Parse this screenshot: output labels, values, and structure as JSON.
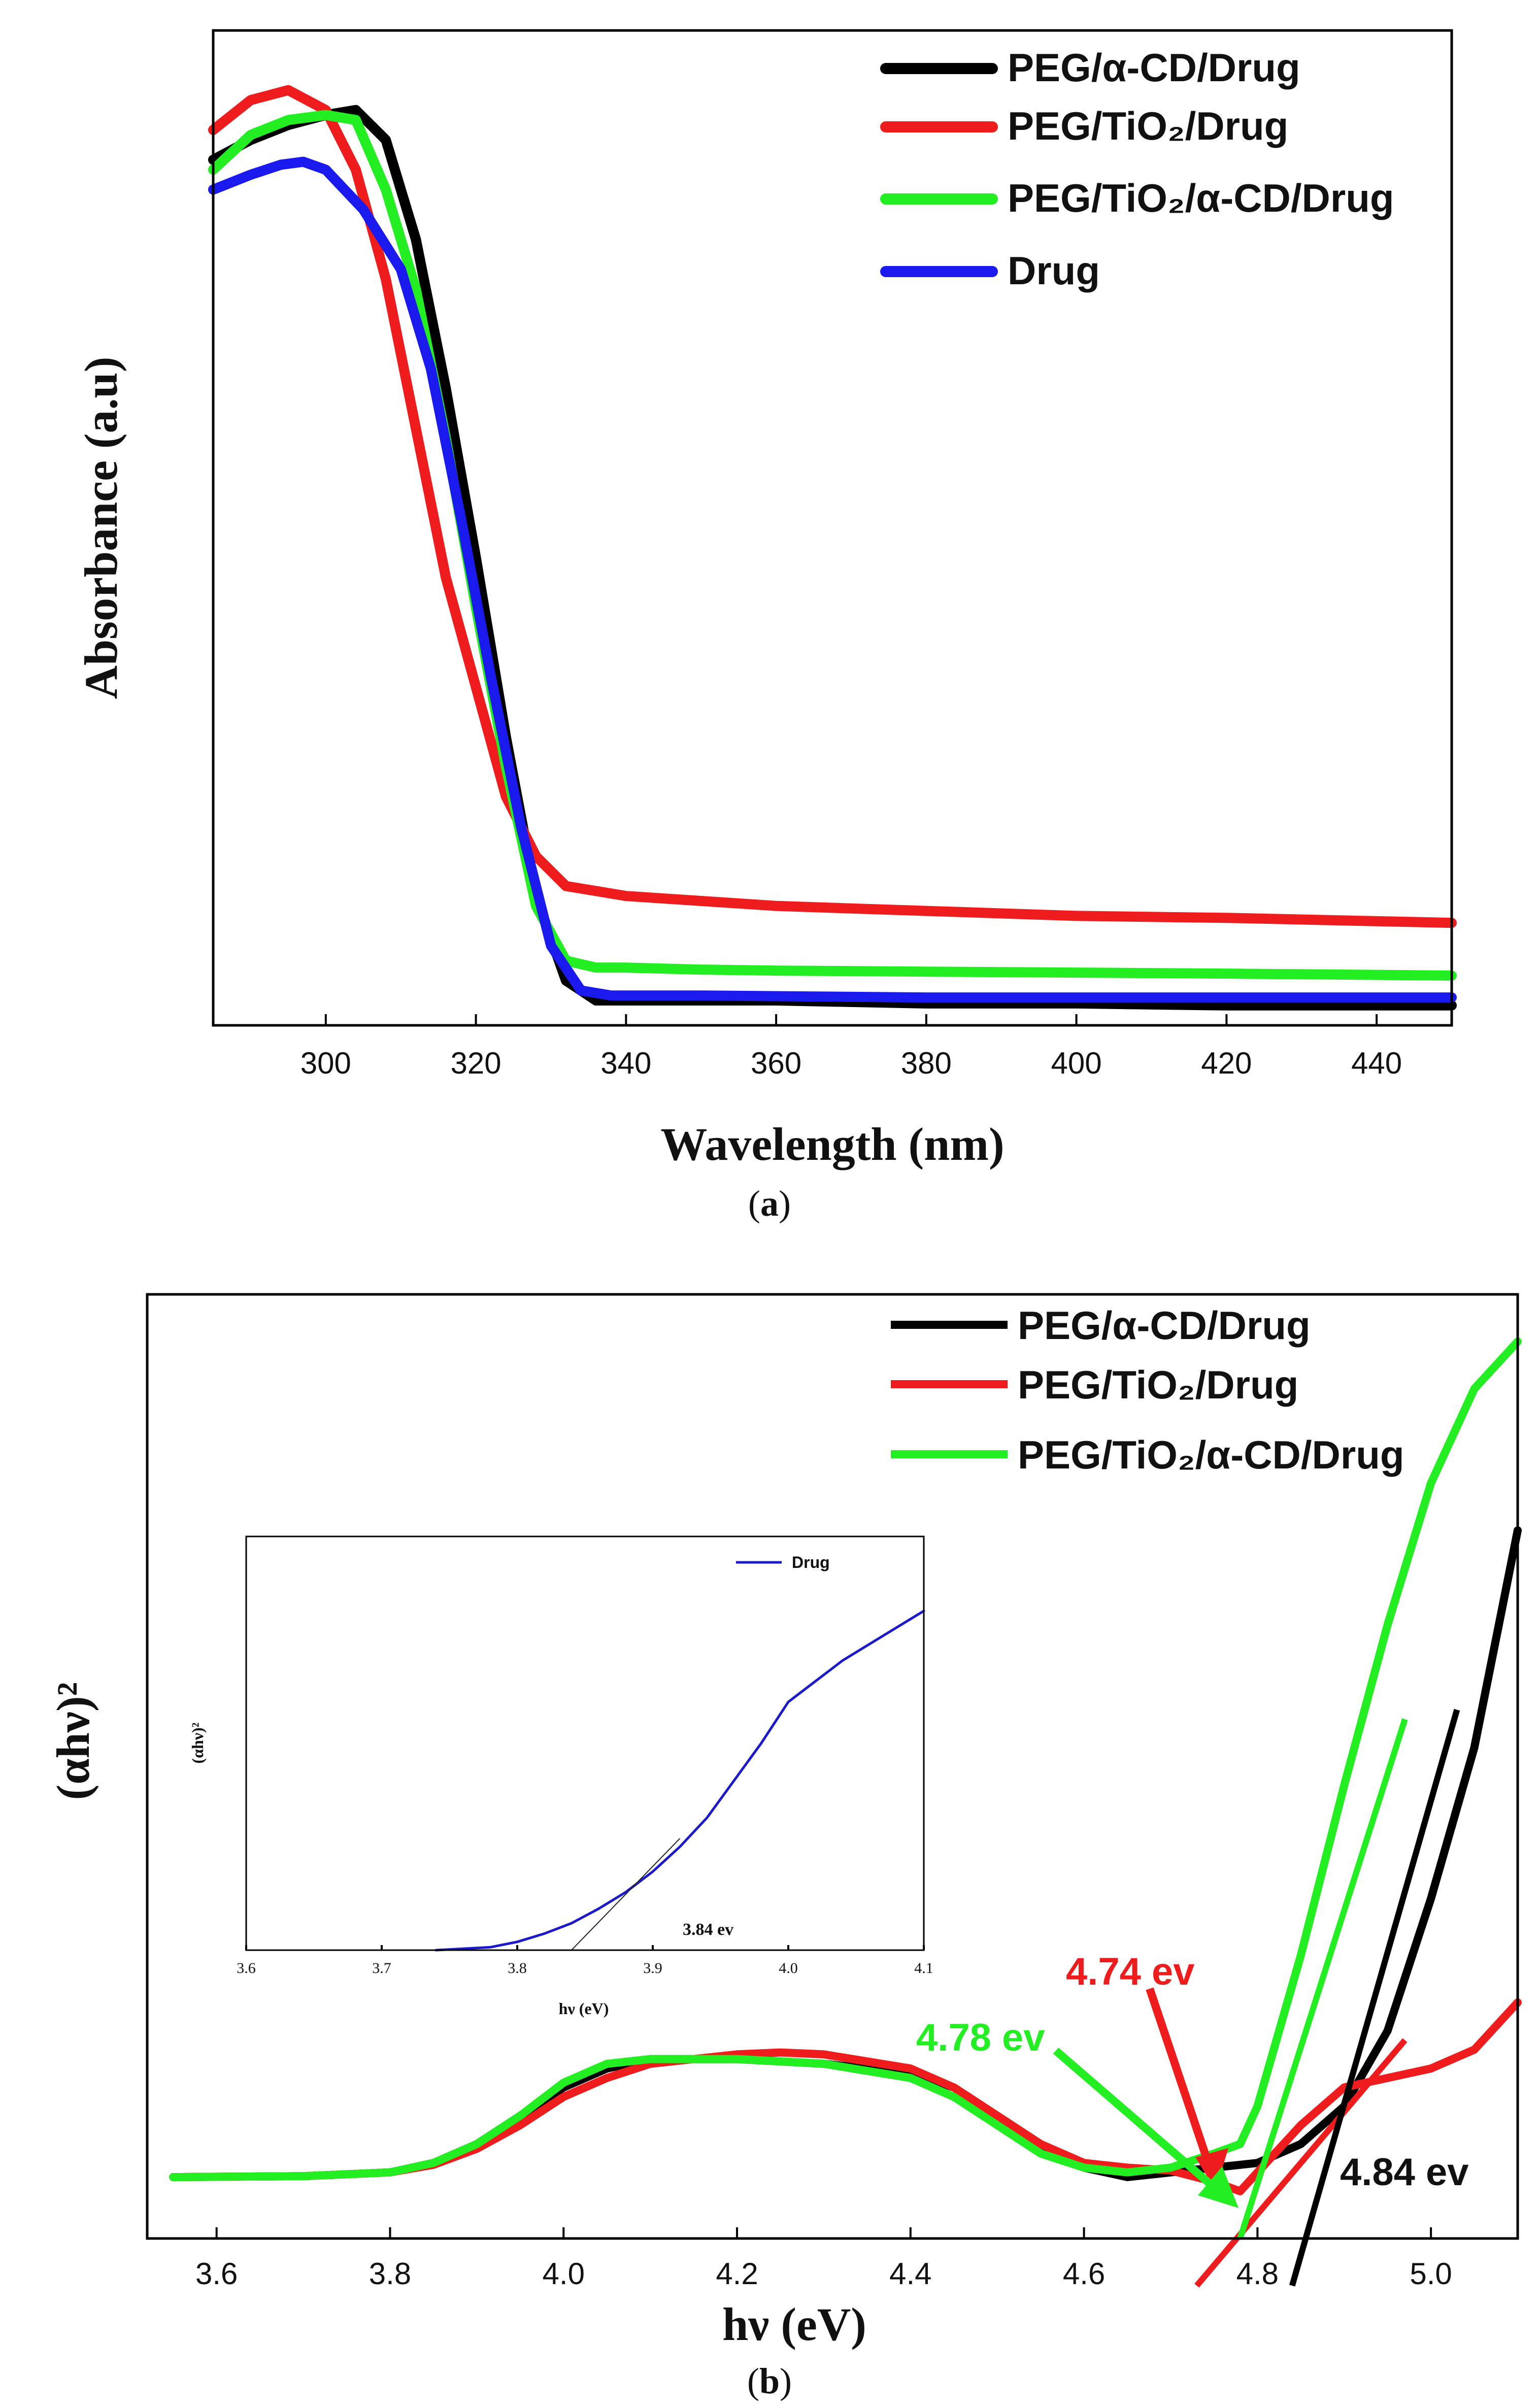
{
  "chart_data": [
    {
      "type": "line",
      "panel_label": "a",
      "xlabel": "Wavelength (nm)",
      "ylabel": "Absorbance (a.u)",
      "xlim": [
        285,
        450
      ],
      "ylim": [
        0,
        1.0
      ],
      "xticks": [
        300,
        320,
        340,
        360,
        380,
        400,
        420,
        440
      ],
      "legend_position": "top-right",
      "series": [
        {
          "name": "PEG/α-CD/Drug",
          "color": "#000000",
          "x": [
            285,
            290,
            295,
            300,
            304,
            308,
            312,
            316,
            320,
            324,
            328,
            332,
            336,
            340,
            350,
            360,
            380,
            400,
            420,
            450
          ],
          "y": [
            0.87,
            0.89,
            0.905,
            0.915,
            0.92,
            0.89,
            0.79,
            0.64,
            0.47,
            0.29,
            0.13,
            0.045,
            0.025,
            0.025,
            0.025,
            0.025,
            0.022,
            0.022,
            0.02,
            0.02
          ]
        },
        {
          "name": "PEG/TiO₂/Drug",
          "color": "#ee1c1c",
          "x": [
            285,
            290,
            295,
            300,
            304,
            308,
            312,
            316,
            320,
            324,
            328,
            332,
            336,
            340,
            350,
            360,
            380,
            400,
            420,
            450
          ],
          "y": [
            0.9,
            0.93,
            0.94,
            0.92,
            0.86,
            0.75,
            0.6,
            0.45,
            0.34,
            0.23,
            0.17,
            0.14,
            0.135,
            0.13,
            0.125,
            0.12,
            0.115,
            0.11,
            0.108,
            0.103
          ]
        },
        {
          "name": "PEG/TiO₂/α-CD/Drug",
          "color": "#22ee22",
          "x": [
            285,
            290,
            295,
            300,
            304,
            308,
            312,
            316,
            320,
            324,
            328,
            332,
            336,
            340,
            350,
            360,
            380,
            400,
            420,
            450
          ],
          "y": [
            0.86,
            0.895,
            0.91,
            0.915,
            0.91,
            0.84,
            0.74,
            0.59,
            0.42,
            0.26,
            0.12,
            0.065,
            0.058,
            0.058,
            0.056,
            0.055,
            0.054,
            0.053,
            0.052,
            0.05
          ]
        },
        {
          "name": "Drug",
          "color": "#1a1aee",
          "x": [
            285,
            290,
            294,
            297,
            300,
            305,
            310,
            314,
            318,
            322,
            326,
            330,
            334,
            338,
            350,
            380,
            420,
            450
          ],
          "y": [
            0.84,
            0.855,
            0.865,
            0.868,
            0.86,
            0.82,
            0.76,
            0.66,
            0.51,
            0.35,
            0.2,
            0.08,
            0.035,
            0.03,
            0.03,
            0.028,
            0.028,
            0.028
          ]
        }
      ]
    },
    {
      "type": "line",
      "panel_label": "b",
      "xlabel": "hν (eV)",
      "ylabel": "(αhν)²",
      "xlim": [
        3.52,
        5.1
      ],
      "ylim": [
        0,
        1.0
      ],
      "xticks": [
        3.6,
        3.8,
        4.0,
        4.2,
        4.4,
        4.6,
        4.8,
        5.0
      ],
      "legend_position": "top-right",
      "series": [
        {
          "name": "PEG/α-CD/Drug",
          "color": "#000000",
          "x": [
            3.55,
            3.7,
            3.8,
            3.85,
            3.9,
            3.95,
            4.0,
            4.05,
            4.1,
            4.2,
            4.3,
            4.4,
            4.45,
            4.5,
            4.55,
            4.6,
            4.65,
            4.7,
            4.75,
            4.8,
            4.85,
            4.9,
            4.95,
            5.0,
            5.05,
            5.1
          ],
          "y": [
            0.065,
            0.066,
            0.07,
            0.08,
            0.1,
            0.13,
            0.16,
            0.18,
            0.19,
            0.19,
            0.185,
            0.175,
            0.16,
            0.13,
            0.1,
            0.075,
            0.065,
            0.07,
            0.075,
            0.08,
            0.1,
            0.14,
            0.22,
            0.36,
            0.52,
            0.75
          ]
        },
        {
          "name": "PEG/TiO₂/Drug",
          "color": "#ee1c1c",
          "x": [
            3.55,
            3.7,
            3.8,
            3.85,
            3.9,
            3.95,
            4.0,
            4.05,
            4.1,
            4.2,
            4.25,
            4.3,
            4.4,
            4.45,
            4.5,
            4.55,
            4.6,
            4.65,
            4.7,
            4.75,
            4.78,
            4.8,
            4.85,
            4.9,
            4.95,
            5.0,
            5.05,
            5.1
          ],
          "y": [
            0.065,
            0.066,
            0.07,
            0.078,
            0.095,
            0.12,
            0.15,
            0.17,
            0.185,
            0.195,
            0.197,
            0.195,
            0.18,
            0.16,
            0.13,
            0.1,
            0.08,
            0.075,
            0.072,
            0.06,
            0.05,
            0.07,
            0.12,
            0.16,
            0.17,
            0.18,
            0.2,
            0.25
          ]
        },
        {
          "name": "PEG/TiO₂/α-CD/Drug",
          "color": "#22ee22",
          "x": [
            3.55,
            3.7,
            3.8,
            3.85,
            3.9,
            3.95,
            4.0,
            4.05,
            4.1,
            4.2,
            4.3,
            4.4,
            4.45,
            4.5,
            4.55,
            4.6,
            4.65,
            4.7,
            4.75,
            4.78,
            4.8,
            4.85,
            4.9,
            4.95,
            5.0,
            5.05,
            5.1
          ],
          "y": [
            0.065,
            0.066,
            0.07,
            0.08,
            0.1,
            0.13,
            0.165,
            0.185,
            0.19,
            0.19,
            0.185,
            0.17,
            0.15,
            0.12,
            0.09,
            0.075,
            0.07,
            0.075,
            0.09,
            0.1,
            0.14,
            0.3,
            0.48,
            0.65,
            0.8,
            0.9,
            0.95
          ]
        }
      ],
      "tangent_lines": [
        {
          "color": "#ee1c1c",
          "x": [
            4.73,
            4.97
          ],
          "y": [
            -0.05,
            0.21
          ]
        },
        {
          "color": "#22ee22",
          "x": [
            4.78,
            4.97
          ],
          "y": [
            0.0,
            0.55
          ]
        },
        {
          "color": "#000000",
          "x": [
            4.84,
            5.03
          ],
          "y": [
            -0.05,
            0.56
          ]
        }
      ],
      "annotations": [
        {
          "text": "4.74 ev",
          "color": "#ee1c1c",
          "x": 4.74
        },
        {
          "text": "4.78 ev",
          "color": "#22ee22",
          "x": 4.78
        },
        {
          "text": "4.84 ev",
          "color": "#111111",
          "x": 4.84
        }
      ],
      "inset": {
        "type": "line",
        "xlabel": "hν (eV)",
        "ylabel": "(αhν)²",
        "xlim": [
          3.6,
          4.1
        ],
        "ylim": [
          0,
          1.0
        ],
        "xticks": [
          3.6,
          3.7,
          3.8,
          3.9,
          4.0,
          4.1
        ],
        "legend_position": "top-right",
        "annotation": "3.84 ev",
        "series": [
          {
            "name": "Drug",
            "color": "#1a1acc",
            "x": [
              3.74,
              3.78,
              3.8,
              3.82,
              3.84,
              3.86,
              3.88,
              3.9,
              3.92,
              3.94,
              3.96,
              3.98,
              4.0,
              4.02,
              4.04,
              4.06,
              4.08,
              4.1
            ],
            "y": [
              0.0,
              0.007,
              0.02,
              0.04,
              0.065,
              0.1,
              0.14,
              0.19,
              0.25,
              0.32,
              0.41,
              0.5,
              0.6,
              0.65,
              0.7,
              0.74,
              0.78,
              0.82
            ]
          }
        ],
        "tangent": {
          "x": [
            3.84,
            3.92
          ],
          "y": [
            0.0,
            0.27
          ]
        }
      }
    }
  ]
}
